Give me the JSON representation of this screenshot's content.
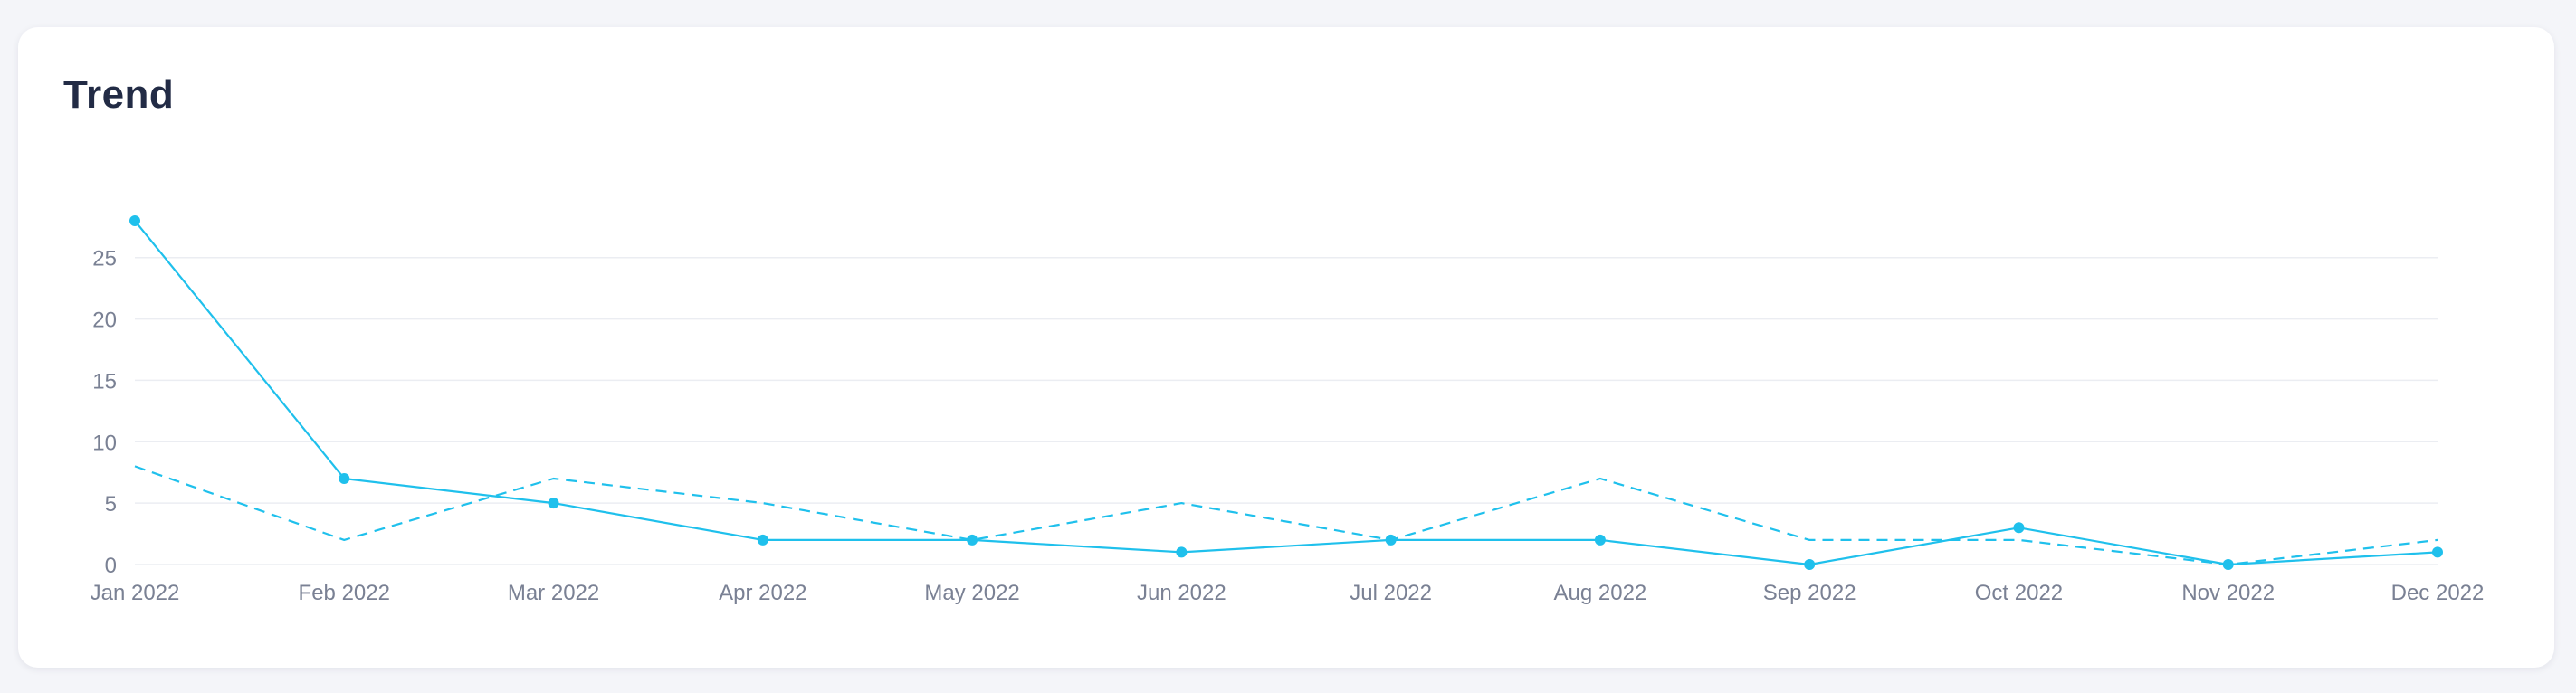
{
  "card": {
    "title": "Trend"
  },
  "colors": {
    "series": "#1fc0ec",
    "grid": "#ebedf2",
    "tick_text": "#7a8194"
  },
  "chart_data": {
    "type": "line",
    "title": "Trend",
    "xlabel": "",
    "ylabel": "",
    "categories": [
      "Jan 2022",
      "Feb 2022",
      "Mar 2022",
      "Apr 2022",
      "May 2022",
      "Jun 2022",
      "Jul 2022",
      "Aug 2022",
      "Sep 2022",
      "Oct 2022",
      "Nov 2022",
      "Dec 2022"
    ],
    "series": [
      {
        "style": "solid",
        "markers": true,
        "values": [
          28,
          7,
          5,
          2,
          2,
          1,
          2,
          2,
          0,
          3,
          0,
          1
        ]
      },
      {
        "style": "dashed",
        "markers": false,
        "values": [
          8,
          2,
          7,
          5,
          2,
          5,
          2,
          7,
          2,
          2,
          0,
          2
        ]
      }
    ],
    "ylim": [
      0,
      28
    ],
    "yticks": [
      0,
      5,
      10,
      15,
      20,
      25
    ],
    "grid": true,
    "legend": "none"
  }
}
